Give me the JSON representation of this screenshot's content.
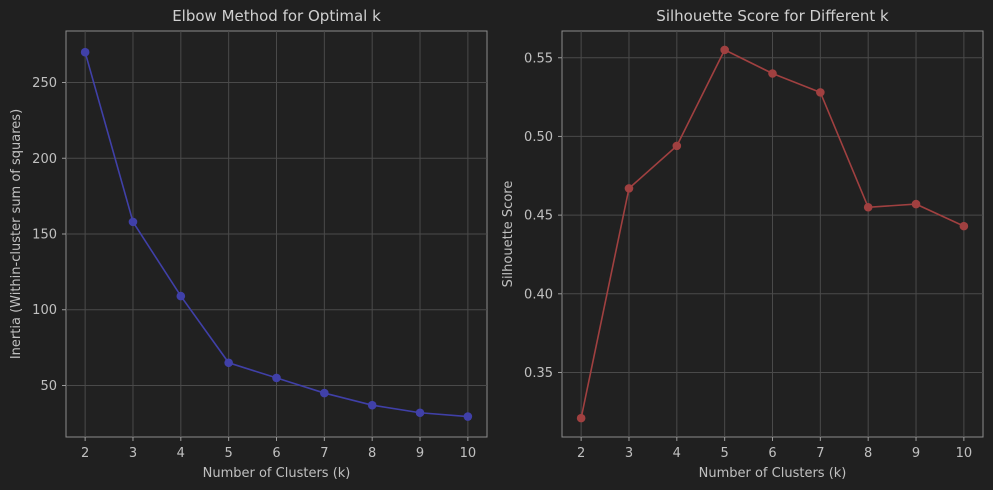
{
  "chart_data": [
    {
      "type": "line",
      "title": "Elbow Method for Optimal k",
      "xlabel": "Number of Clusters (k)",
      "ylabel": "Inertia (Within-cluster sum of squares)",
      "x": [
        2,
        3,
        4,
        5,
        6,
        7,
        8,
        9,
        10
      ],
      "xticks": [
        2,
        3,
        4,
        5,
        6,
        7,
        8,
        9,
        10
      ],
      "xlim": [
        1.6,
        10.4
      ],
      "ylim": [
        16,
        284
      ],
      "yticks": [
        50,
        100,
        150,
        200,
        250
      ],
      "grid": true,
      "series": [
        {
          "values": [
            270,
            158,
            109,
            65,
            55,
            45,
            37,
            32,
            29.5
          ],
          "color": "#4040a8"
        }
      ]
    },
    {
      "type": "line",
      "title": "Silhouette Score for Different k",
      "xlabel": "Number of Clusters (k)",
      "ylabel": "Silhouette Score",
      "x": [
        2,
        3,
        4,
        5,
        6,
        7,
        8,
        9,
        10
      ],
      "xticks": [
        2,
        3,
        4,
        5,
        6,
        7,
        8,
        9,
        10
      ],
      "xlim": [
        1.6,
        10.4
      ],
      "ylim": [
        0.309,
        0.567
      ],
      "yticks": [
        0.35,
        0.4,
        0.45,
        0.5,
        0.55
      ],
      "ytick_labels": [
        "0.35",
        "0.40",
        "0.45",
        "0.50",
        "0.55"
      ],
      "grid": true,
      "series": [
        {
          "values": [
            0.321,
            0.467,
            0.494,
            0.555,
            0.54,
            0.528,
            0.455,
            0.457,
            0.443
          ],
          "color": "#a04040"
        }
      ]
    }
  ]
}
